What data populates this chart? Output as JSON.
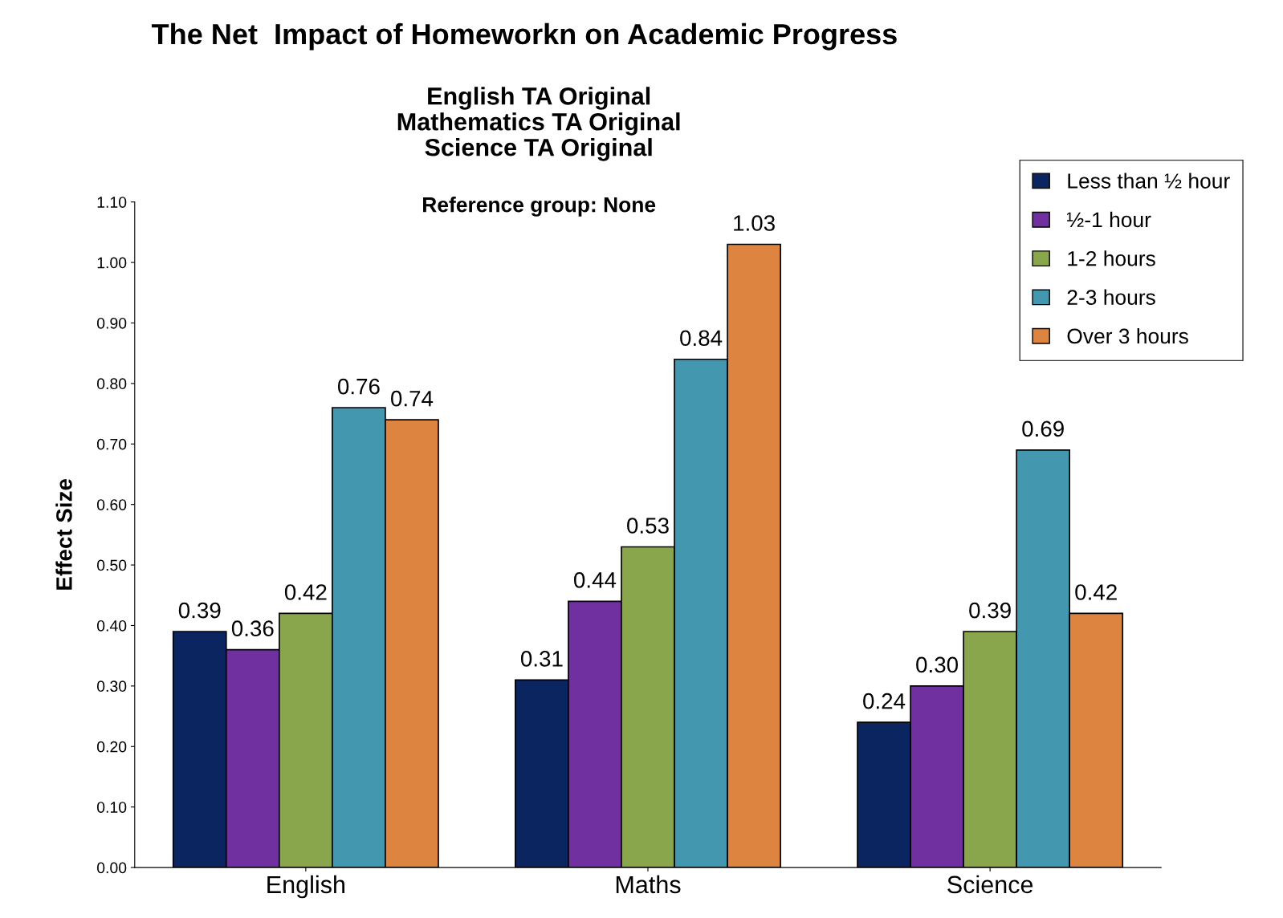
{
  "chart_data": {
    "type": "bar",
    "title": "The Net  Impact of Homeworkn on Academic Progress",
    "subtitle": "English TA Original\nMathematics TA Original\nScience TA Original",
    "annotations": [
      "Reference group: None"
    ],
    "ylabel": "Effect Size",
    "categories": [
      "English",
      "Maths",
      "Science"
    ],
    "series": [
      {
        "name": "Less than ½ hour",
        "color": "#0a2560",
        "values": [
          0.39,
          0.31,
          0.24
        ],
        "value_labels": [
          "0.39",
          "0.31",
          "0.24"
        ]
      },
      {
        "name": "½-1 hour",
        "color": "#7030a0",
        "values": [
          0.36,
          0.44,
          0.3
        ],
        "value_labels": [
          "0.36",
          "0.44",
          "0.30"
        ]
      },
      {
        "name": "1-2 hours",
        "color": "#8aa64c",
        "values": [
          0.42,
          0.53,
          0.39
        ],
        "value_labels": [
          "0.42",
          "0.53",
          "0.39"
        ]
      },
      {
        "name": "2-3 hours",
        "color": "#4398b0",
        "values": [
          0.76,
          0.84,
          0.69
        ],
        "value_labels": [
          "0.76",
          "0.84",
          "0.69"
        ]
      },
      {
        "name": "Over 3 hours",
        "color": "#dc8440",
        "values": [
          0.74,
          1.03,
          0.42
        ],
        "value_labels": [
          "0.74",
          "1.03",
          "0.42"
        ]
      }
    ],
    "ylim": [
      0,
      1.1
    ],
    "yticks": [
      {
        "value": 0,
        "label": "0.00"
      },
      {
        "value": 0.1,
        "label": "0.10"
      },
      {
        "value": 0.2,
        "label": "0.20"
      },
      {
        "value": 0.3,
        "label": "0.30"
      },
      {
        "value": 0.4,
        "label": "0.40"
      },
      {
        "value": 0.5,
        "label": "0.50"
      },
      {
        "value": 0.6,
        "label": "0.60"
      },
      {
        "value": 0.7,
        "label": "0.70"
      },
      {
        "value": 0.8,
        "label": "0.80"
      },
      {
        "value": 0.9,
        "label": "0.90"
      },
      {
        "value": 1.0,
        "label": "1.00"
      },
      {
        "value": 1.1,
        "label": "1.10"
      }
    ],
    "grid": false,
    "legend": "top right"
  }
}
